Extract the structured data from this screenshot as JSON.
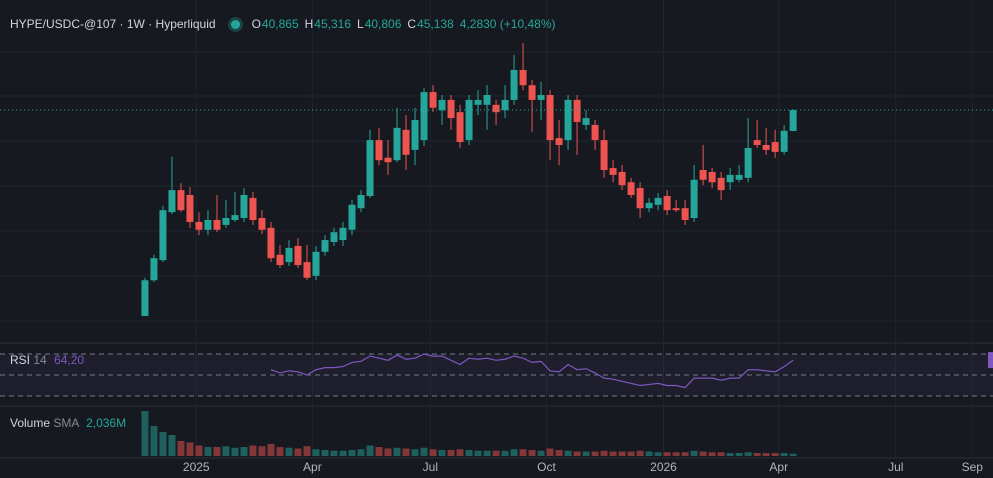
{
  "header": {
    "symbol": "HYPE/USDC-@107 · 1W · Hyperliquid",
    "open_label": "O",
    "open": "40,865",
    "high_label": "H",
    "high": "45,316",
    "low_label": "L",
    "low": "40,806",
    "close_label": "C",
    "close": "45,138",
    "change": "4,2830 (+10,48%)"
  },
  "chart_data": {
    "type": "candlestick",
    "up_color": "#26a69a",
    "down_color": "#ef5350",
    "xlim": [
      -16.1,
      94.2
    ],
    "xticks": [
      {
        "value": 5.7,
        "label": "2025"
      },
      {
        "value": 18.6,
        "label": "Apr"
      },
      {
        "value": 31.7,
        "label": "Jul"
      },
      {
        "value": 44.6,
        "label": "Oct"
      },
      {
        "value": 57.6,
        "label": "2026"
      },
      {
        "value": 70.4,
        "label": "Apr"
      },
      {
        "value": 83.4,
        "label": "Jul"
      },
      {
        "value": 91.9,
        "label": "Sep"
      }
    ],
    "ylim": [
      0,
      60
    ],
    "open": [
      3.1,
      10.4,
      14.5,
      24.3,
      28.8,
      27.8,
      22.3,
      20.7,
      22.7,
      21.7,
      22.7,
      23.1,
      27.2,
      23.1,
      21.1,
      15.6,
      14.1,
      17.4,
      14.1,
      11.3,
      16.2,
      18.2,
      18.6,
      20.7,
      25.1,
      27.6,
      39.0,
      35.4,
      34.9,
      41.1,
      37.0,
      39.0,
      48.8,
      45.1,
      47.2,
      44.7,
      39.0,
      46.2,
      46.2,
      46.2,
      45.1,
      47.2,
      53.3,
      50.2,
      47.2,
      48.2,
      39.4,
      39.0,
      47.2,
      42.1,
      42.1,
      39.0,
      33.3,
      32.5,
      30.4,
      29.2,
      25.1,
      25.8,
      27.6,
      25.1,
      25.1,
      23.1,
      32.9,
      32.5,
      31.3,
      30.4,
      30.9,
      31.3,
      39.0,
      38.0,
      38.6,
      36.6,
      40.865
    ],
    "high": [
      10.9,
      15.6,
      25.6,
      35.6,
      30.2,
      29.4,
      24.3,
      24.7,
      27.8,
      26.8,
      28.4,
      29.2,
      28.4,
      24.7,
      22.3,
      17.6,
      18.6,
      19.0,
      17.6,
      17.4,
      19.6,
      21.1,
      22.3,
      26.8,
      28.8,
      41.1,
      41.5,
      39.0,
      45.6,
      44.1,
      45.6,
      49.6,
      50.2,
      48.2,
      48.2,
      46.2,
      48.2,
      49.2,
      50.2,
      47.2,
      50.2,
      56.4,
      58.8,
      51.3,
      50.9,
      49.2,
      43.1,
      48.2,
      48.2,
      45.1,
      43.1,
      41.1,
      34.9,
      33.9,
      31.3,
      30.4,
      27.2,
      28.2,
      28.8,
      26.8,
      26.8,
      33.9,
      38.0,
      33.3,
      32.5,
      33.3,
      33.9,
      43.5,
      43.1,
      41.5,
      41.1,
      42.1,
      45.316
    ],
    "low": [
      3.1,
      10.0,
      14.1,
      23.9,
      24.3,
      21.1,
      19.6,
      19.6,
      20.2,
      21.1,
      22.3,
      22.3,
      21.7,
      19.8,
      14.1,
      12.9,
      13.3,
      12.9,
      10.4,
      10.4,
      15.4,
      17.4,
      17.4,
      19.6,
      24.3,
      27.2,
      33.9,
      31.9,
      34.5,
      32.9,
      33.9,
      37.8,
      44.7,
      42.1,
      41.1,
      37.4,
      38.0,
      44.1,
      41.1,
      42.1,
      43.5,
      46.2,
      49.2,
      40.7,
      43.1,
      34.9,
      33.9,
      37.0,
      36.0,
      41.1,
      37.0,
      31.3,
      30.4,
      28.8,
      27.2,
      23.1,
      24.3,
      24.7,
      23.7,
      24.3,
      21.7,
      22.3,
      29.8,
      29.2,
      26.8,
      28.8,
      30.4,
      30.4,
      37.4,
      36.0,
      35.4,
      36.0,
      40.806
    ],
    "close": [
      10.4,
      14.9,
      24.7,
      28.8,
      24.7,
      22.3,
      20.7,
      22.7,
      20.7,
      23.1,
      23.7,
      27.8,
      22.7,
      20.7,
      14.9,
      13.5,
      17.0,
      13.5,
      10.9,
      16.2,
      18.6,
      20.2,
      21.1,
      25.8,
      27.8,
      39.0,
      34.9,
      34.5,
      41.5,
      36.0,
      43.1,
      48.8,
      45.6,
      47.2,
      43.5,
      38.6,
      47.2,
      47.2,
      48.2,
      44.7,
      47.2,
      53.3,
      50.2,
      47.2,
      48.2,
      39.0,
      38.0,
      47.2,
      42.7,
      43.5,
      39.0,
      32.9,
      31.9,
      29.8,
      27.8,
      25.1,
      26.2,
      27.2,
      24.7,
      24.7,
      22.7,
      30.9,
      30.9,
      30.4,
      28.8,
      31.9,
      31.9,
      37.4,
      38.0,
      37.0,
      36.6,
      40.9,
      45.138
    ],
    "volume": {
      "label": "Volume",
      "sma_label": "SMA",
      "sma": "2,036M",
      "ylim": [
        0,
        30000
      ],
      "values": [
        30000,
        20000,
        16000,
        14000,
        10000,
        9000,
        7000,
        6000,
        6000,
        6500,
        5500,
        6000,
        7000,
        6500,
        8000,
        6000,
        5500,
        5000,
        6500,
        4500,
        4000,
        3500,
        3500,
        4000,
        4500,
        7000,
        6000,
        5000,
        5500,
        5000,
        4500,
        5500,
        4500,
        4000,
        4000,
        4500,
        4000,
        3500,
        3500,
        3500,
        3500,
        4500,
        4500,
        4000,
        3500,
        5000,
        4000,
        3500,
        3000,
        3000,
        3000,
        3500,
        3000,
        3000,
        3000,
        3500,
        3000,
        2500,
        2500,
        2500,
        2500,
        3500,
        3000,
        2500,
        2500,
        2000,
        2000,
        2500,
        2000,
        2000,
        2000,
        2000,
        1500
      ]
    },
    "rsi": {
      "label": "RSI",
      "period": 14,
      "value_label": "64,20",
      "color": "#7e57c2",
      "ylim": [
        20,
        80
      ],
      "levels": [
        70,
        50,
        30
      ],
      "values": [
        null,
        null,
        null,
        null,
        null,
        null,
        null,
        null,
        null,
        null,
        null,
        null,
        null,
        null,
        55,
        52,
        54,
        53,
        50,
        55,
        57,
        57,
        58,
        62,
        63,
        68,
        66,
        64,
        69,
        65,
        66,
        70,
        68,
        68,
        64,
        60,
        66,
        65,
        66,
        64,
        65,
        68,
        66,
        62,
        63,
        54,
        53,
        60,
        55,
        56,
        52,
        47,
        46,
        44,
        42,
        40,
        41,
        42,
        40,
        40,
        38,
        47,
        47,
        47,
        45,
        47,
        47,
        55,
        55,
        54,
        53,
        58,
        64.2
      ]
    }
  }
}
